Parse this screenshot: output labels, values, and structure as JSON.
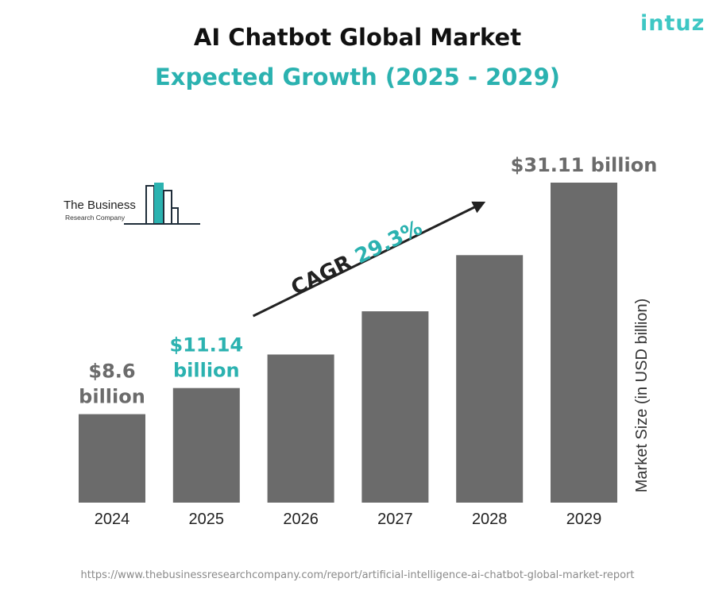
{
  "header": {
    "title": "AI Chatbot Global Market",
    "subtitle": "Expected Growth (2025 - 2029)",
    "brand_logo_text": "intuz"
  },
  "source_logo": {
    "line1": "The Business",
    "line2": "Research Company"
  },
  "footer": {
    "url": "https://www.thebusinessresearchcompany.com/report/artificial-intelligence-ai-chatbot-global-market-report"
  },
  "colors": {
    "bar": "#6b6b6b",
    "accent": "#2bb2b0",
    "label_gray": "#6b6b6b",
    "brand": "#3ec7c4"
  },
  "chart_data": {
    "type": "bar",
    "categories": [
      "2024",
      "2025",
      "2026",
      "2027",
      "2028",
      "2029"
    ],
    "values": [
      8.6,
      11.14,
      14.4,
      18.6,
      24.06,
      31.11
    ],
    "ylabel": "Market Size (in USD billion)",
    "ylim": [
      0,
      31.11
    ],
    "grid": false,
    "data_labels": [
      {
        "category": "2024",
        "lines": [
          "$8.6",
          "billion"
        ],
        "color": "#6b6b6b"
      },
      {
        "category": "2025",
        "lines": [
          "$11.14",
          "billion"
        ],
        "color": "#2bb2b0"
      },
      {
        "category": "2029",
        "lines": [
          "$31.11 billion"
        ],
        "color": "#6b6b6b"
      }
    ],
    "annotation": {
      "prefix": "CAGR",
      "value": "29.3%",
      "arrow_from": "2026",
      "arrow_to": "2028"
    }
  }
}
